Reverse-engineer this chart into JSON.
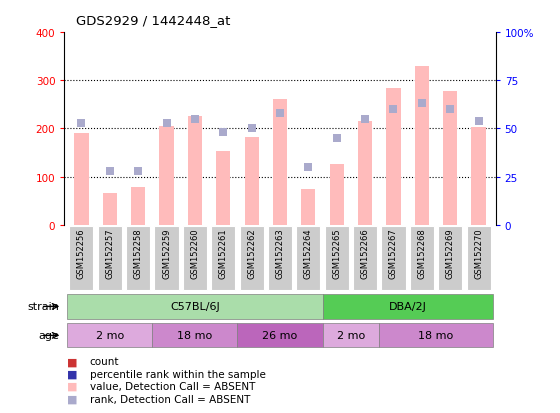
{
  "title": "GDS2929 / 1442448_at",
  "samples": [
    "GSM152256",
    "GSM152257",
    "GSM152258",
    "GSM152259",
    "GSM152260",
    "GSM152261",
    "GSM152262",
    "GSM152263",
    "GSM152264",
    "GSM152265",
    "GSM152266",
    "GSM152267",
    "GSM152268",
    "GSM152269",
    "GSM152270"
  ],
  "bar_values": [
    190,
    65,
    78,
    205,
    225,
    152,
    183,
    260,
    75,
    125,
    215,
    283,
    330,
    278,
    203
  ],
  "bar_absent": [
    true,
    true,
    true,
    true,
    true,
    true,
    true,
    true,
    true,
    true,
    true,
    true,
    true,
    true,
    true
  ],
  "rank_values": [
    53,
    28,
    28,
    53,
    55,
    48,
    50,
    58,
    30,
    45,
    55,
    60,
    63,
    60,
    54
  ],
  "rank_absent": [
    true,
    true,
    true,
    true,
    true,
    true,
    true,
    true,
    true,
    true,
    true,
    true,
    true,
    true,
    true
  ],
  "bar_color_present": "#cc3333",
  "bar_color_absent": "#ffbbbb",
  "rank_color_present": "#3333cc",
  "rank_color_absent": "#aaaacc",
  "ylim_left": [
    0,
    400
  ],
  "ylim_right": [
    0,
    100
  ],
  "yticks_left": [
    0,
    100,
    200,
    300,
    400
  ],
  "yticks_right": [
    0,
    25,
    50,
    75,
    100
  ],
  "ytick_labels_right": [
    "0",
    "25",
    "50",
    "75",
    "100%"
  ],
  "grid_values": [
    100,
    200,
    300
  ],
  "strain_groups": [
    {
      "label": "C57BL/6J",
      "start": 0,
      "end": 9,
      "color": "#aaddaa"
    },
    {
      "label": "DBA/2J",
      "start": 9,
      "end": 15,
      "color": "#55cc55"
    }
  ],
  "age_groups": [
    {
      "label": "2 mo",
      "start": 0,
      "end": 3,
      "color": "#ddaadd"
    },
    {
      "label": "18 mo",
      "start": 3,
      "end": 6,
      "color": "#cc88cc"
    },
    {
      "label": "26 mo",
      "start": 6,
      "end": 9,
      "color": "#bb66bb"
    },
    {
      "label": "2 mo",
      "start": 9,
      "end": 11,
      "color": "#ddaadd"
    },
    {
      "label": "18 mo",
      "start": 11,
      "end": 15,
      "color": "#cc88cc"
    }
  ],
  "legend_items": [
    {
      "label": "count",
      "color": "#cc3333"
    },
    {
      "label": "percentile rank within the sample",
      "color": "#3333aa"
    },
    {
      "label": "value, Detection Call = ABSENT",
      "color": "#ffbbbb"
    },
    {
      "label": "rank, Detection Call = ABSENT",
      "color": "#aaaacc"
    }
  ],
  "bar_width": 0.5,
  "rank_marker_size": 6,
  "background_color": "#ffffff"
}
